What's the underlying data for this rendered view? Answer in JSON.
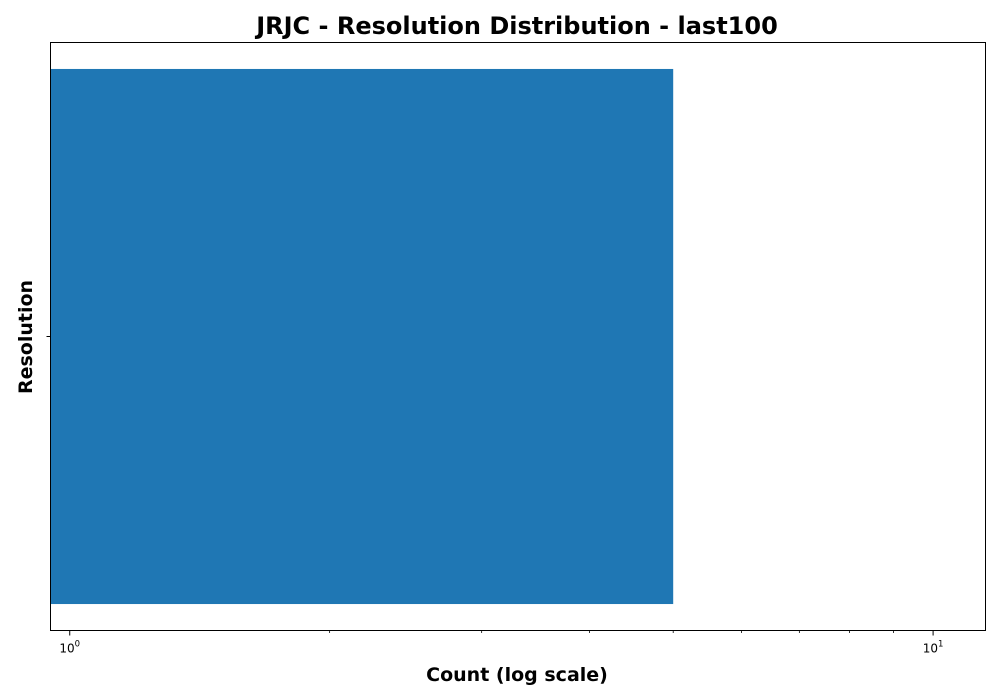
{
  "chart_data": {
    "type": "bar",
    "orientation": "horizontal",
    "title": "JRJC - Resolution Distribution - last100",
    "xlabel": "Count (log scale)",
    "ylabel": "Resolution",
    "x_scale": "log",
    "xlim": [
      0.95,
      11.5
    ],
    "x_ticks": [
      {
        "base": "10",
        "exp": "0",
        "value": 1
      },
      {
        "base": "10",
        "exp": "1",
        "value": 10
      }
    ],
    "categories": [
      ""
    ],
    "values": [
      5
    ],
    "bar_color": "#1f77b4",
    "grid": false,
    "legend": "none"
  }
}
